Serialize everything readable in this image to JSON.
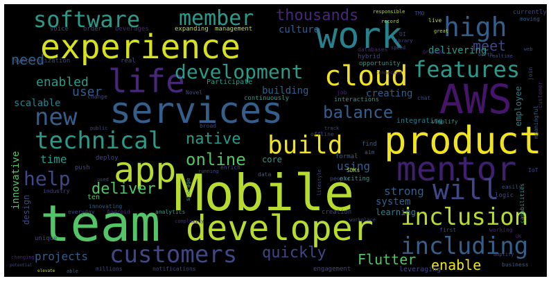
{
  "palette": {
    "yellow": "#f0e31f",
    "lime": "#b7dc2f",
    "green": "#54c566",
    "teal": "#2a9b8a",
    "cyan": "#27828e",
    "blue": "#345f8c",
    "indigo": "#3f4788",
    "purple": "#482778",
    "dark": "#46146a",
    "background": "#000000"
  },
  "words": {
    "mobile": "Mobile",
    "team": "team",
    "developer": "developer",
    "services": "services",
    "product": "product",
    "experience": "experience",
    "work": "work",
    "aws": "AWS",
    "app": "app",
    "mentor": "mentor",
    "will": "will",
    "customers": "customers",
    "life": "life",
    "cloud": "cloud",
    "build": "build",
    "including": "including",
    "inclusion": "inclusion",
    "software": "software",
    "member": "member",
    "high": "high",
    "features": "features",
    "technical": "technical",
    "new": "new",
    "development": "development",
    "help": "help",
    "thousands": "thousands",
    "balance": "balance",
    "native": "native",
    "online": "online",
    "deliver": "deliver",
    "quickly": "quickly",
    "flutter": "Flutter",
    "enable": "enable",
    "need": "need",
    "meet": "meet",
    "delivering": "delivering",
    "enabled": "enabled",
    "user": "user",
    "scalable": "scalable",
    "time": "time",
    "innovative": "innovative",
    "projects": "projects",
    "building": "building",
    "creating": "creating",
    "using": "using",
    "strong": "strong",
    "system": "system",
    "design": "design",
    "employee": "employee",
    "culture": "culture",
    "participate": "Participate",
    "core": "core",
    "learning": "learning",
    "integrating": "integrating",
    "ten": "ten",
    "leveraging": "leveraging",
    "voice": "voice",
    "order": "order",
    "sdks": "SDKs",
    "synchronization": "synchronization",
    "expanding": "expanding",
    "management": "management",
    "hybrid": "hybrid",
    "opportunity": "opportunity",
    "currently": "currently",
    "moving": "moving",
    "interactions": "interactions",
    "continuously": "continuously",
    "offline": "offline",
    "simplify": "simplify",
    "deploy": "deploy",
    "push": "push",
    "android": "Android",
    "innovating": "innovating",
    "analytics": "analytics",
    "everyday": "everyday",
    "complexity": "complexity",
    "storage": "storage",
    "data": "data",
    "people": "people",
    "exciting": "exciting",
    "formal": "formal",
    "find": "find",
    "aim": "aim",
    "creation": "creation",
    "unique": "unique",
    "industry": "industry",
    "changing": "changing",
    "millions": "millions",
    "notifications": "notifications",
    "able": "able",
    "engagement": "engagement",
    "first": "first",
    "business": "business",
    "working": "working",
    "logic": "logic",
    "easily": "easily",
    "capabilities": "capabilities",
    "meaningful": "meaningful",
    "customer": "customer",
    "chat": "chat",
    "job": "job",
    "broad": "broad",
    "enrich": "enrich",
    "change": "change",
    "public": "public",
    "real": "real",
    "library": "library",
    "great": "great",
    "live": "live",
    "graphql": "GraphQL",
    "responsible": "responsible",
    "record": "record",
    "tmo": "TMO",
    "speed": "speed",
    "ui": "UI",
    "join": "join",
    "track": "track",
    "lifestyle": "lifestyle",
    "running": "running",
    "iot": "IoT",
    "workplace": "workplace",
    "elevate": "elevate",
    "potential": "potential",
    "beverages": "beverages",
    "used": "used",
    "novel": "Novel",
    "databases": "databases",
    "connected": "connected",
    "realtime": "realtime",
    "worth": "worth",
    "amplify": "amplify",
    "uk": "UK",
    "web": "web"
  }
}
